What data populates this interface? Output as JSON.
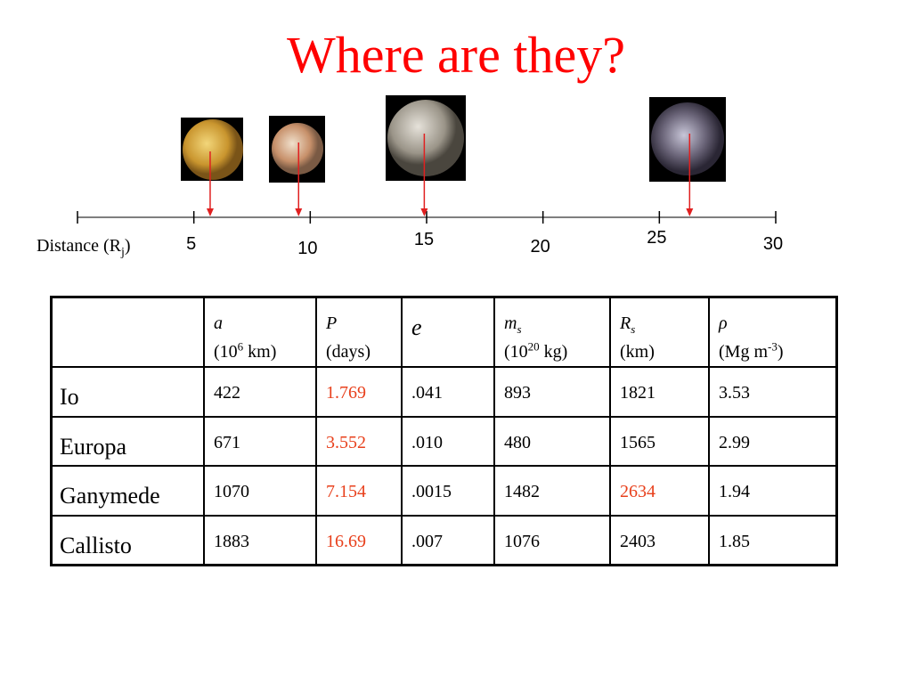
{
  "title": "Where are they?",
  "axis": {
    "label": [
      "Distance (R",
      "j",
      ")"
    ],
    "xlim": [
      0,
      30
    ],
    "xticks": [
      {
        "value": 0,
        "label": null
      },
      5,
      10,
      15,
      20,
      25,
      30
    ],
    "arrows": [
      5.7,
      9.5,
      14.9,
      26.3
    ],
    "arrow_color": "#e02020"
  },
  "table": {
    "header": [
      {
        "symbol": [
          "a"
        ],
        "unit": [
          "(10",
          "6",
          " km)"
        ]
      },
      {
        "symbol": [
          "P"
        ],
        "unit": [
          "(days)"
        ]
      },
      {
        "symbol": [
          "e"
        ],
        "unit": []
      },
      {
        "symbol": [
          "m",
          "s"
        ],
        "unit": [
          "(10",
          "20",
          " kg)"
        ]
      },
      {
        "symbol": [
          "R",
          "s"
        ],
        "unit": [
          "(km)"
        ]
      },
      {
        "symbol": [
          "ρ"
        ],
        "unit": [
          "(Mg m",
          "-3",
          ")"
        ]
      }
    ],
    "highlight_color": "#e8401c",
    "rows": [
      {
        "name": "Io",
        "cells": [
          "422",
          "1.769",
          ".041",
          "893",
          "1821",
          "3.53"
        ],
        "highlight": [
          1
        ]
      },
      {
        "name": "Europa",
        "cells": [
          "671",
          "3.552",
          ".010",
          "480",
          "1565",
          "2.99"
        ],
        "highlight": [
          1
        ]
      },
      {
        "name": "Ganymede",
        "cells": [
          "1070",
          "7.154",
          ".0015",
          "1482",
          "2634",
          "1.94"
        ],
        "highlight": [
          1,
          4
        ]
      },
      {
        "name": "Callisto",
        "cells": [
          "1883",
          "16.69",
          ".007",
          "1076",
          "2403",
          "1.85"
        ],
        "highlight": [
          1
        ]
      }
    ]
  }
}
